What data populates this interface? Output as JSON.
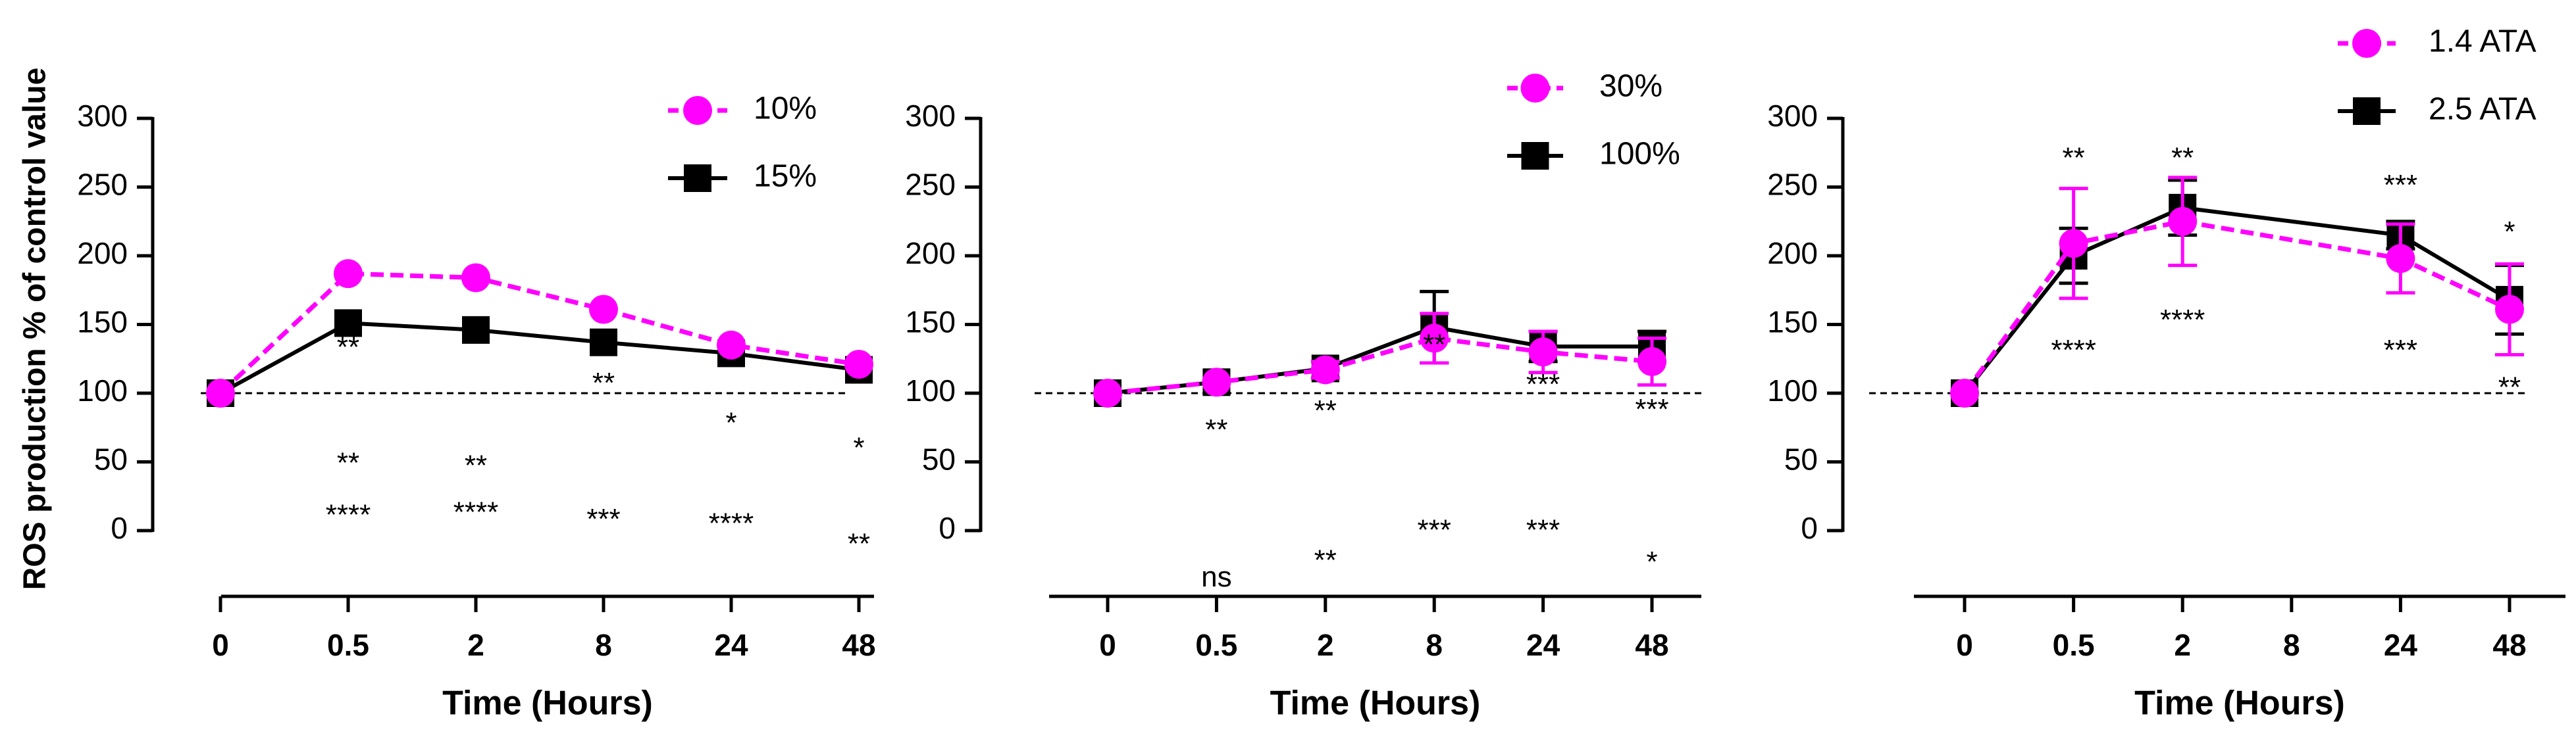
{
  "figure": {
    "ylabel": "ROS production % of control value",
    "colors": {
      "magenta": "#ff00ff",
      "black": "#000000"
    }
  },
  "chart_data": [
    {
      "type": "line",
      "title": "",
      "xlabel": "Time (Hours)",
      "ylabel": "ROS production % of control value",
      "categories": [
        "0",
        "0.5",
        "2",
        "8",
        "24",
        "48"
      ],
      "ylim": [
        0,
        300
      ],
      "yticks": [
        0,
        50,
        100,
        150,
        200,
        250,
        300
      ],
      "ytick_labels": [
        "0",
        "50",
        "100",
        "150",
        "200",
        "250",
        "300"
      ],
      "reference_line": 100,
      "grid": false,
      "legend_position": "top-right",
      "series": [
        {
          "name": "10%",
          "color": "#ff00ff",
          "dashed": true,
          "marker": "circle",
          "values": [
            100,
            187,
            184,
            161,
            135,
            121
          ],
          "errors": [
            0,
            0,
            0,
            0,
            0,
            0
          ]
        },
        {
          "name": "15%",
          "color": "#000000",
          "dashed": false,
          "marker": "square",
          "values": [
            100,
            151,
            146,
            137,
            129,
            117
          ],
          "errors": [
            0,
            0,
            0,
            0,
            0,
            0
          ]
        }
      ],
      "annotations": [
        {
          "text": "**",
          "x": "0.5",
          "y": 132
        },
        {
          "text": "**",
          "x": "2",
          "y": 137
        },
        {
          "text": "**",
          "x": "8",
          "y": 106
        },
        {
          "text": "*",
          "x": "24",
          "y": 77
        },
        {
          "text": "*",
          "x": "48",
          "y": 59
        },
        {
          "text": "**",
          "x": "0.5",
          "y": 48
        },
        {
          "text": "**",
          "x": "2",
          "y": 46
        },
        {
          "text": "****",
          "x": "0.5",
          "y": 10
        },
        {
          "text": "****",
          "x": "2",
          "y": 12
        },
        {
          "text": "***",
          "x": "8",
          "y": 7
        },
        {
          "text": "****",
          "x": "24",
          "y": 4
        },
        {
          "text": "**",
          "x": "48",
          "y": -11
        }
      ]
    },
    {
      "type": "line",
      "title": "",
      "xlabel": "Time (Hours)",
      "ylabel": "",
      "categories": [
        "0",
        "0.5",
        "2",
        "8",
        "24",
        "48"
      ],
      "ylim": [
        0,
        300
      ],
      "yticks": [
        0,
        50,
        100,
        150,
        200,
        250,
        300
      ],
      "ytick_labels": [
        "0",
        "50",
        "100",
        "150",
        "200",
        "250",
        "300"
      ],
      "reference_line": 100,
      "grid": false,
      "legend_position": "top-right",
      "series": [
        {
          "name": "30%",
          "color": "#ff00ff",
          "dashed": true,
          "marker": "circle",
          "values": [
            100,
            108,
            117,
            140,
            130,
            123
          ],
          "errors": [
            0,
            0,
            6,
            18,
            15,
            17
          ]
        },
        {
          "name": "100%",
          "color": "#000000",
          "dashed": false,
          "marker": "square",
          "values": [
            100,
            108,
            118,
            148,
            134,
            134
          ],
          "errors": [
            0,
            0,
            0,
            26,
            11,
            11
          ]
        }
      ],
      "annotations": [
        {
          "text": "**",
          "x": "0.5",
          "y": 72
        },
        {
          "text": "**",
          "x": "2",
          "y": 86
        },
        {
          "text": "**",
          "x": "8",
          "y": 134
        },
        {
          "text": "***",
          "x": "24",
          "y": 105
        },
        {
          "text": "***",
          "x": "48",
          "y": 87
        },
        {
          "text": "ns",
          "x": "0.5",
          "y": -35
        },
        {
          "text": "**",
          "x": "2",
          "y": -23
        },
        {
          "text": "***",
          "x": "8",
          "y": -1
        },
        {
          "text": "***",
          "x": "24",
          "y": -1
        },
        {
          "text": "*",
          "x": "48",
          "y": -24
        }
      ]
    },
    {
      "type": "line",
      "title": "",
      "xlabel": "Time (Hours)",
      "ylabel": "",
      "categories": [
        "0",
        "0.5",
        "2",
        "8",
        "24",
        "48"
      ],
      "ylim": [
        0,
        300
      ],
      "yticks": [
        0,
        50,
        100,
        150,
        200,
        250,
        300
      ],
      "ytick_labels": [
        "0",
        "50",
        "100",
        "150",
        "200",
        "250",
        "300"
      ],
      "reference_line": 100,
      "grid": false,
      "legend_position": "top-right",
      "series": [
        {
          "name": "1.4 ATA",
          "color": "#ff00ff",
          "dashed": true,
          "marker": "circle",
          "values": [
            100,
            209,
            225,
            null,
            198,
            161
          ],
          "errors": [
            0,
            40,
            32,
            0,
            25,
            33
          ]
        },
        {
          "name": "2.5 ATA",
          "color": "#000000",
          "dashed": false,
          "marker": "square",
          "values": [
            100,
            200,
            235,
            null,
            215,
            168
          ],
          "errors": [
            0,
            20,
            20,
            0,
            10,
            25
          ]
        }
      ],
      "annotations": [
        {
          "text": "**",
          "x": "0.5",
          "y": 270
        },
        {
          "text": "**",
          "x": "2",
          "y": 270
        },
        {
          "text": "***",
          "x": "24",
          "y": 250
        },
        {
          "text": "*",
          "x": "48",
          "y": 216
        },
        {
          "text": "****",
          "x": "0.5",
          "y": 130
        },
        {
          "text": "****",
          "x": "2",
          "y": 152
        },
        {
          "text": "***",
          "x": "24",
          "y": 130
        },
        {
          "text": "**",
          "x": "48",
          "y": 103
        }
      ]
    }
  ]
}
